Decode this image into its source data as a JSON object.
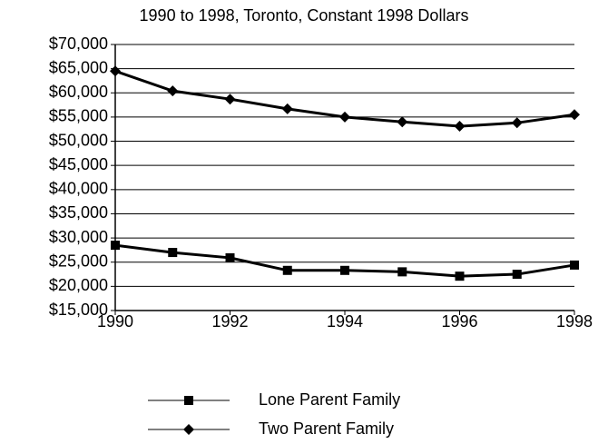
{
  "chart_data": {
    "type": "line",
    "title": "1990 to 1998, Toronto, Constant 1998 Dollars",
    "x": [
      1990,
      1991,
      1992,
      1993,
      1994,
      1995,
      1996,
      1997,
      1998
    ],
    "series": [
      {
        "name": "Lone Parent Family",
        "color": "#000000",
        "marker": "square",
        "values": [
          28500,
          27000,
          25900,
          23300,
          23300,
          23000,
          22100,
          22500,
          24400
        ]
      },
      {
        "name": "Two Parent Family",
        "color": "#000000",
        "marker": "diamond",
        "values": [
          64500,
          60400,
          58700,
          56700,
          55000,
          54000,
          53100,
          53800,
          55500
        ]
      }
    ],
    "xlim": [
      1990,
      1998
    ],
    "xticks": [
      1990,
      1992,
      1994,
      1996,
      1998
    ],
    "ylim": [
      15000,
      70000
    ],
    "yticks": [
      {
        "value": 15000,
        "label": "$15,000"
      },
      {
        "value": 20000,
        "label": "$20,000"
      },
      {
        "value": 25000,
        "label": "$25,000"
      },
      {
        "value": 30000,
        "label": "$30,000"
      },
      {
        "value": 35000,
        "label": "$35,000"
      },
      {
        "value": 40000,
        "label": "$40,000"
      },
      {
        "value": 45000,
        "label": "$45,000"
      },
      {
        "value": 50000,
        "label": "$50,000"
      },
      {
        "value": 55000,
        "label": "$55,000"
      },
      {
        "value": 60000,
        "label": "$60,000"
      },
      {
        "value": 65000,
        "label": "$65,000"
      },
      {
        "value": 70000,
        "label": "$70,000"
      }
    ],
    "grid": true,
    "legend": "bottom"
  }
}
